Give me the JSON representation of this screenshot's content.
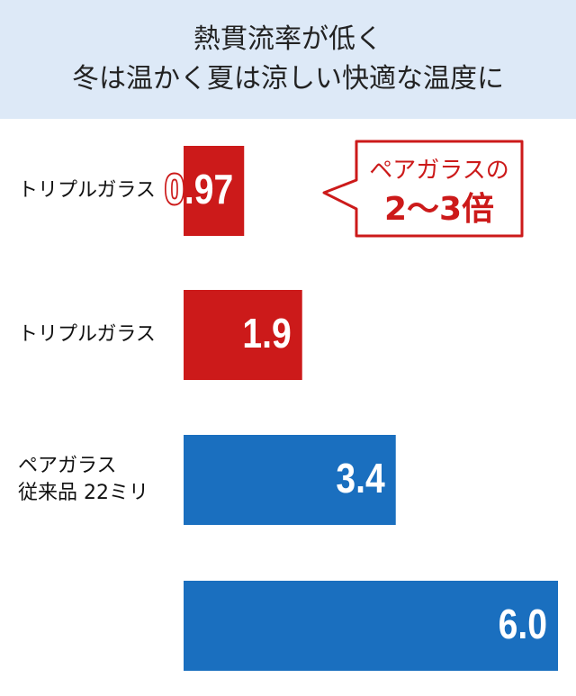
{
  "chart_data": {
    "type": "bar",
    "orientation": "horizontal",
    "title": "熱貫流率が低く\n冬は温かく夏は涼しい快適な温度に",
    "categories": [
      "トリプルガラス",
      "トリプルガラス",
      "ペアガラス\n従来品 22ミリ",
      null
    ],
    "values": [
      0.97,
      1.9,
      3.4,
      6.0
    ],
    "value_labels": [
      "0.97",
      "1.9",
      "3.4",
      "6.0"
    ],
    "colors": [
      "#cc1a1a",
      "#cc1a1a",
      "#1a6fbf",
      "#1a6fbf"
    ],
    "xlim": [
      0,
      6
    ],
    "annotation": {
      "line1": "ペアガラスの",
      "line2": "2～3倍",
      "color": "#cc1a1a"
    }
  }
}
